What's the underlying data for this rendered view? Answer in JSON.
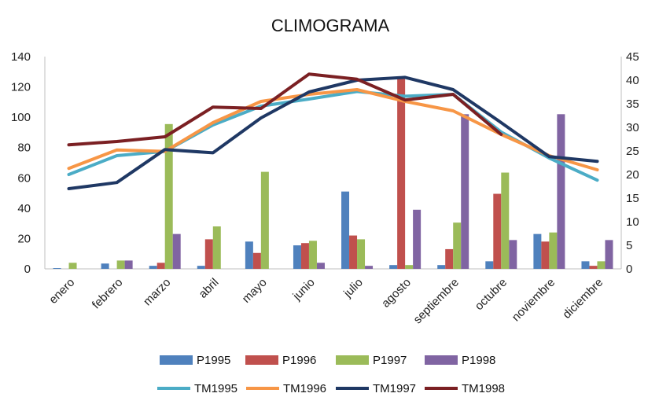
{
  "chart_data": {
    "type": "bar+line",
    "title": "CLIMOGRAMA",
    "categories": [
      "enero",
      "febrero",
      "marzo",
      "abril",
      "mayo",
      "junio",
      "julio",
      "agosto",
      "septiembre",
      "octubre",
      "noviembre",
      "diciembre"
    ],
    "y_left": {
      "min": 0,
      "max": 140,
      "ticks": [
        "0",
        "20",
        "40",
        "60",
        "80",
        "100",
        "120",
        "140"
      ]
    },
    "y_right": {
      "min": 0,
      "max": 45,
      "ticks": [
        "0",
        "5",
        "10",
        "15",
        "20",
        "25",
        "30",
        "35",
        "40",
        "45"
      ]
    },
    "grid": false,
    "legend_position": "bottom",
    "bar_series": [
      {
        "name": "P1995",
        "color": "#4f81bd",
        "values": [
          0.5,
          3.5,
          2,
          2,
          18,
          15.5,
          51,
          2.5,
          2.5,
          5,
          23,
          5
        ]
      },
      {
        "name": "P1996",
        "color": "#c0504d",
        "values": [
          0,
          0,
          4,
          19.5,
          10.5,
          17,
          22,
          126,
          13,
          49.5,
          18,
          2
        ]
      },
      {
        "name": "P1997",
        "color": "#9bbb59",
        "values": [
          4,
          5.5,
          95.5,
          28,
          64,
          18.5,
          19.5,
          2.5,
          30.5,
          63.5,
          24,
          5
        ]
      },
      {
        "name": "P1998",
        "color": "#8064a2",
        "values": [
          0,
          5.5,
          23,
          0,
          0,
          4,
          2,
          39,
          102,
          19,
          102,
          19
        ]
      }
    ],
    "line_series": [
      {
        "name": "TM1995",
        "color": "#4bacc6",
        "values": [
          20,
          24,
          24.9,
          30.5,
          34.5,
          36,
          37.6,
          36.6,
          37,
          29,
          23.5,
          18.8
        ]
      },
      {
        "name": "TM1996",
        "color": "#f79646",
        "values": [
          21.3,
          25.2,
          24.9,
          31,
          35.5,
          37,
          38,
          35.5,
          33.5,
          28.5,
          24,
          21
        ]
      },
      {
        "name": "TM1997",
        "color": "#1f3864",
        "values": [
          17,
          18.3,
          25.3,
          24.6,
          32,
          37.5,
          40,
          40.6,
          38,
          31,
          23.8,
          22.8
        ]
      },
      {
        "name": "TM1998",
        "color": "#7b2023",
        "values": [
          26.3,
          27,
          28,
          34.3,
          34,
          41.3,
          40.2,
          35.8,
          37,
          28.5,
          null,
          null
        ]
      }
    ]
  }
}
